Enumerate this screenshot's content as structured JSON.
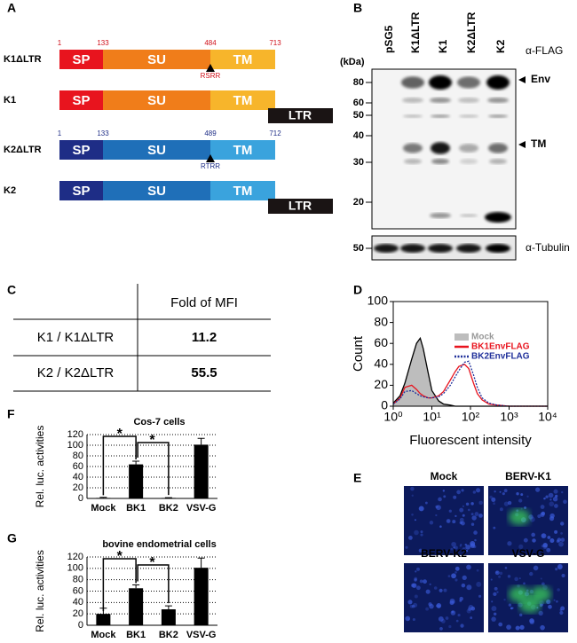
{
  "panel_labels": [
    "A",
    "B",
    "C",
    "D",
    "E",
    "F",
    "G"
  ],
  "diagram": {
    "constructs": [
      {
        "name": "K1ΔLTR",
        "domains": [
          "SP",
          "SU",
          "TM"
        ],
        "positions": [
          1,
          133,
          484,
          713
        ],
        "site": "RSRR"
      },
      {
        "name": "K1",
        "domains": [
          "SP",
          "SU",
          "TM"
        ],
        "ltr": "LTR"
      },
      {
        "name": "K2ΔLTR",
        "domains": [
          "SP",
          "SU",
          "TM"
        ],
        "positions": [
          1,
          133,
          489,
          712
        ],
        "site": "RTRR"
      },
      {
        "name": "K2",
        "domains": [
          "SP",
          "SU",
          "TM"
        ],
        "ltr": "LTR"
      }
    ]
  },
  "blot": {
    "lanes": [
      "pSG5",
      "K1ΔLTR",
      "K1",
      "K2ΔLTR",
      "K2"
    ],
    "antibody": "α-FLAG",
    "unit": "(kDa)",
    "markers": [
      80,
      60,
      50,
      40,
      30,
      20
    ],
    "bands": [
      "Env",
      "TM"
    ],
    "loading_marker": 50,
    "loading_antibody": "α-Tubulin"
  },
  "table": {
    "header": "Fold of MFI",
    "rows": [
      [
        "K1 / K1ΔLTR",
        11.2
      ],
      [
        "K2 / K2ΔLTR",
        55.5
      ]
    ]
  },
  "chart_data": [
    {
      "type": "line",
      "xlabel": "Fluorescent intensity",
      "ylabel": "Count",
      "log_x": true,
      "xlim": [
        1,
        10000
      ],
      "ylim": [
        0,
        100
      ],
      "xticks": [
        {
          "value": 1,
          "label": "10⁰"
        },
        {
          "value": 10,
          "label": "10¹"
        },
        {
          "value": 100,
          "label": "10²"
        },
        {
          "value": 1000,
          "label": "10³"
        },
        {
          "value": 10000,
          "label": "10⁴"
        }
      ],
      "yticks": [
        0,
        20,
        40,
        60,
        80,
        100
      ],
      "x": [
        1,
        1.5,
        2,
        3,
        4,
        5,
        6,
        8,
        10,
        15,
        20,
        30,
        40,
        50,
        70,
        90,
        120,
        150,
        200,
        300,
        500,
        1000,
        10000
      ],
      "series": [
        {
          "name": "Mock",
          "color": "#000000",
          "fill": "#bdbdbd",
          "values": [
            3,
            10,
            22,
            45,
            60,
            65,
            55,
            32,
            15,
            5,
            2,
            1,
            0,
            0,
            0,
            0,
            0,
            0,
            0,
            0,
            0,
            0,
            0
          ]
        },
        {
          "name": "BK1EnvFLAG",
          "color": "#e8141e",
          "values": [
            2,
            8,
            18,
            20,
            16,
            12,
            10,
            8,
            8,
            10,
            14,
            25,
            33,
            38,
            40,
            36,
            22,
            12,
            6,
            2,
            1,
            0,
            0
          ]
        },
        {
          "name": "BK2EnvFLAG",
          "color": "#1f2f9a",
          "dashed": true,
          "values": [
            2,
            7,
            14,
            15,
            12,
            10,
            9,
            8,
            8,
            9,
            12,
            20,
            28,
            34,
            42,
            43,
            30,
            18,
            8,
            3,
            1,
            0,
            0
          ]
        }
      ]
    },
    {
      "type": "bar",
      "title": "Cos-7 cells",
      "ylabel": "Rel. luc. activities",
      "color": "#000000",
      "categories": [
        "Mock",
        "BK1",
        "BK2",
        "VSV-G"
      ],
      "values": [
        1,
        64,
        1,
        101
      ],
      "errors": [
        1,
        6,
        0.5,
        12
      ],
      "ylim": [
        0,
        120
      ],
      "yticks": [
        0,
        20,
        40,
        60,
        80,
        100,
        120
      ],
      "grid": true,
      "annotations": [
        "*",
        "*"
      ]
    },
    {
      "type": "bar",
      "title": "bovine endometrial cells",
      "ylabel": "Rel. luc. activities",
      "color": "#000000",
      "categories": [
        "Mock",
        "BK1",
        "BK2",
        "VSV-G"
      ],
      "values": [
        20,
        65,
        28,
        101
      ],
      "errors": [
        10,
        6,
        6,
        17
      ],
      "ylim": [
        0,
        120
      ],
      "yticks": [
        0,
        20,
        40,
        60,
        80,
        100,
        120
      ],
      "grid": true,
      "annotations": [
        "*",
        "*"
      ]
    }
  ],
  "images": {
    "labels": [
      "Mock",
      "BERV-K1",
      "BERV-K2",
      "VSV-G"
    ]
  }
}
